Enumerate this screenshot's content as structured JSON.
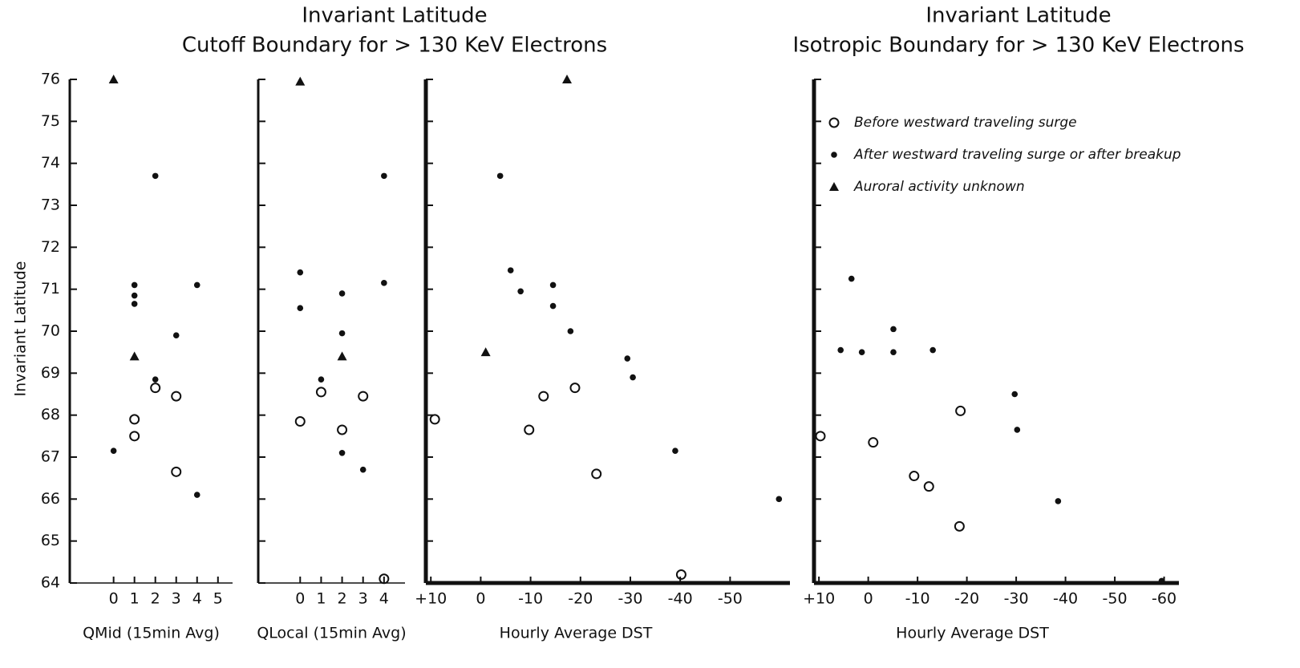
{
  "chart_data": [
    {
      "type": "scatter",
      "title": "Invariant Latitude",
      "subtitle": "Cutoff Boundary for > 130 KeV Electrons",
      "y_label": "Invariant Latitude",
      "x_label": "QMid (15min Avg)",
      "xlim": [
        -2.1,
        5.7
      ],
      "xticks": [
        0,
        1,
        2,
        3,
        4,
        5
      ],
      "ylim": [
        64,
        76
      ],
      "yticks": [
        64,
        65,
        66,
        67,
        68,
        69,
        70,
        71,
        72,
        73,
        74,
        75,
        76
      ],
      "ytick_labels": true,
      "series": [
        {
          "marker": "open",
          "color": "#111111",
          "x": [
            2,
            3,
            1,
            1,
            3
          ],
          "values": [
            68.65,
            68.45,
            67.9,
            67.5,
            66.65
          ]
        },
        {
          "marker": "dot",
          "color": "#111111",
          "x": [
            2,
            1,
            1,
            1,
            4,
            3,
            2,
            0,
            4
          ],
          "values": [
            73.7,
            71.1,
            70.85,
            70.65,
            71.1,
            69.9,
            68.85,
            67.15,
            66.1
          ]
        },
        {
          "marker": "triangle",
          "color": "#111111",
          "x": [
            0,
            1
          ],
          "values": [
            76,
            69.4
          ]
        }
      ]
    },
    {
      "type": "scatter",
      "x_label": "QLocal (15min Avg)",
      "xlim": [
        -2,
        5
      ],
      "xticks": [
        0,
        1,
        2,
        3,
        4
      ],
      "ylim": [
        64,
        76
      ],
      "yticks": [
        64,
        65,
        66,
        67,
        68,
        69,
        70,
        71,
        72,
        73,
        74,
        75,
        76
      ],
      "series": [
        {
          "marker": "open",
          "color": "#111111",
          "x": [
            1,
            3,
            0,
            2,
            4
          ],
          "values": [
            68.55,
            68.45,
            67.85,
            67.65,
            64.1
          ]
        },
        {
          "marker": "dot",
          "color": "#111111",
          "x": [
            4,
            0,
            0,
            4,
            2,
            2,
            1,
            2,
            3
          ],
          "values": [
            73.7,
            71.4,
            70.55,
            71.15,
            70.9,
            69.95,
            68.85,
            67.1,
            66.7
          ]
        },
        {
          "marker": "triangle",
          "color": "#111111",
          "x": [
            0,
            2
          ],
          "values": [
            75.95,
            69.4
          ]
        }
      ]
    },
    {
      "type": "scatter",
      "x_label": "Hourly Average DST",
      "xlim": [
        11,
        -62
      ],
      "xticks": [
        {
          "value": 10,
          "label": "+10"
        },
        0,
        -10,
        -20,
        -30,
        -40,
        -50
      ],
      "ylim": [
        64,
        76
      ],
      "yticks": [
        64,
        65,
        66,
        67,
        68,
        69,
        70,
        71,
        72,
        73,
        74,
        75,
        76
      ],
      "series": [
        {
          "marker": "open",
          "color": "#111111",
          "x": [
            -18.9,
            -12.6,
            9.2,
            -9.7,
            -23.2,
            -40.2
          ],
          "values": [
            68.65,
            68.45,
            67.9,
            67.65,
            66.6,
            64.2
          ]
        },
        {
          "marker": "dot",
          "color": "#111111",
          "x": [
            -3.9,
            -6,
            -8,
            -14.5,
            -14.5,
            -18,
            -29.4,
            -30.5,
            -39,
            -59.8
          ],
          "values": [
            73.7,
            71.45,
            70.95,
            71.1,
            70.6,
            70,
            69.35,
            68.9,
            67.15,
            66
          ]
        },
        {
          "marker": "triangle",
          "color": "#111111",
          "x": [
            -17.3,
            -1
          ],
          "values": [
            76,
            69.5
          ]
        }
      ]
    },
    {
      "type": "scatter",
      "title": "Invariant Latitude",
      "subtitle": "Isotropic Boundary for > 130 KeV Electrons",
      "x_label": "Hourly Average DST",
      "xlim": [
        11,
        -63
      ],
      "xticks": [
        {
          "value": 10,
          "label": "+10"
        },
        0,
        -10,
        -20,
        -30,
        -40,
        -50,
        -60
      ],
      "ylim": [
        64,
        76
      ],
      "yticks": [
        64,
        65,
        66,
        67,
        68,
        69,
        70,
        71,
        72,
        73,
        74,
        75,
        76
      ],
      "series": [
        {
          "name": "Before westward traveling surge",
          "marker": "open",
          "color": "#111111",
          "x": [
            9.7,
            -1,
            -18.7,
            -9.3,
            -12.3,
            -18.5
          ],
          "values": [
            67.5,
            67.35,
            68.1,
            66.55,
            66.3,
            65.35
          ]
        },
        {
          "name": "After westward traveling surge or after breakup",
          "marker": "dot",
          "color": "#111111",
          "x": [
            3.4,
            5.6,
            1.3,
            -5.1,
            -5.1,
            -13.1,
            -29.7,
            -30.2,
            -38.5,
            -59.5
          ],
          "values": [
            71.25,
            69.55,
            69.5,
            70.05,
            69.5,
            69.55,
            68.5,
            67.65,
            65.95,
            64.05
          ]
        },
        {
          "name": "Auroral activity unknown",
          "marker": "triangle",
          "color": "#111111",
          "x": [],
          "values": []
        }
      ]
    }
  ]
}
